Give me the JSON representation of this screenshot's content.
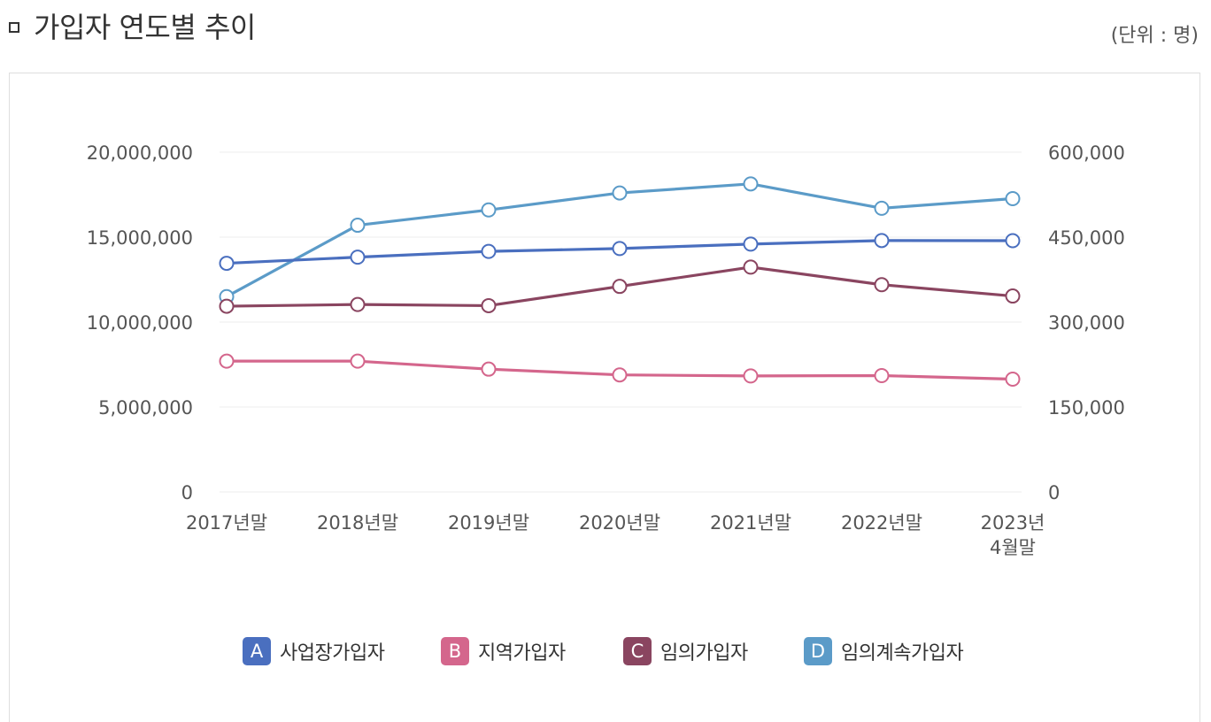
{
  "header": {
    "title": "가입자 연도별 추이",
    "unit": "(단위 : 명)"
  },
  "chart_data": {
    "type": "line",
    "categories": [
      "2017년말",
      "2018년말",
      "2019년말",
      "2020년말",
      "2021년말",
      "2022년말",
      "2023년 4월말"
    ],
    "category_labels": [
      [
        "2017년말"
      ],
      [
        "2018년말"
      ],
      [
        "2019년말"
      ],
      [
        "2020년말"
      ],
      [
        "2021년말"
      ],
      [
        "2022년말"
      ],
      [
        "2023년",
        "4월말"
      ]
    ],
    "left_axis": {
      "ylim": [
        0,
        20000000
      ],
      "ticks": [
        0,
        5000000,
        10000000,
        15000000,
        20000000
      ],
      "tick_labels": [
        "0",
        "5,000,000",
        "10,000,000",
        "15,000,000",
        "20,000,000"
      ]
    },
    "right_axis": {
      "ylim": [
        0,
        600000
      ],
      "ticks": [
        0,
        150000,
        300000,
        450000,
        600000
      ],
      "tick_labels": [
        "0",
        "150,000",
        "300,000",
        "450,000",
        "600,000"
      ]
    },
    "grid": true,
    "legend_position": "bottom",
    "series": [
      {
        "badge": "A",
        "name": "사업장가입자",
        "color": "#4a6fbf",
        "axis": "left",
        "values": [
          13460000,
          13820000,
          14160000,
          14330000,
          14590000,
          14800000,
          14790000
        ]
      },
      {
        "badge": "B",
        "name": "지역가입자",
        "color": "#d4668c",
        "axis": "left",
        "values": [
          7700000,
          7700000,
          7230000,
          6890000,
          6830000,
          6850000,
          6640000
        ]
      },
      {
        "badge": "C",
        "name": "임의가입자",
        "color": "#8a4560",
        "axis": "right",
        "values": [
          328000,
          331000,
          329000,
          363000,
          397000,
          366000,
          346000
        ]
      },
      {
        "badge": "D",
        "name": "임의계속가입자",
        "color": "#5b9bc8",
        "axis": "right",
        "values": [
          345000,
          471000,
          498000,
          528000,
          544000,
          501000,
          518000
        ]
      }
    ]
  }
}
